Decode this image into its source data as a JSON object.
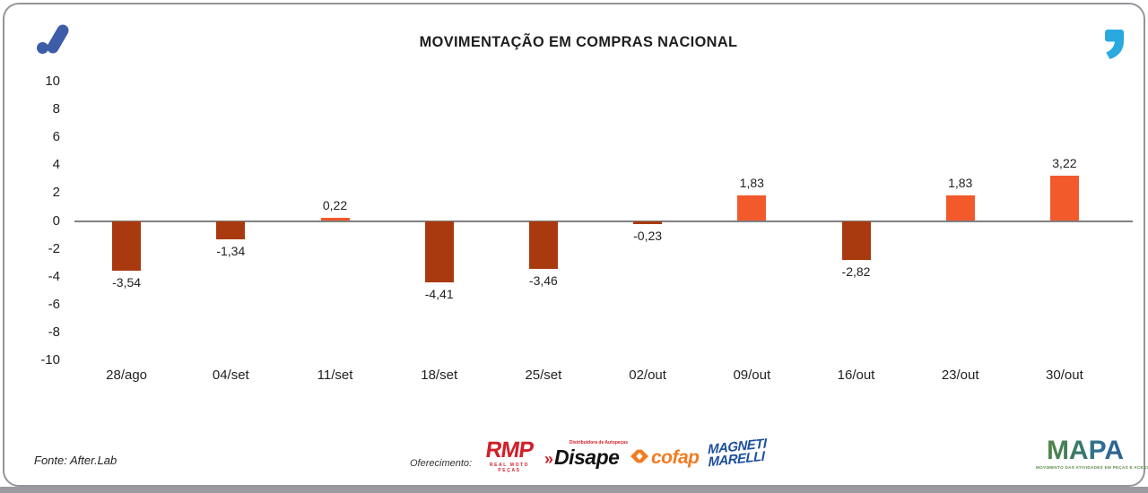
{
  "chart_data": {
    "type": "bar",
    "title": "MOVIMENTAÇÃO EM COMPRAS NACIONAL",
    "categories": [
      "28/ago",
      "04/set",
      "11/set",
      "18/set",
      "25/set",
      "02/out",
      "09/out",
      "16/out",
      "23/out",
      "30/out"
    ],
    "values": [
      -3.54,
      -1.34,
      0.22,
      -4.41,
      -3.46,
      -0.23,
      1.83,
      -2.82,
      1.83,
      3.22
    ],
    "value_labels": [
      "-3,54",
      "-1,34",
      "0,22",
      "-4,41",
      "-3,46",
      "-0,23",
      "1,83",
      "-2,82",
      "1,83",
      "3,22"
    ],
    "ylim": [
      -10,
      10
    ],
    "ytick_step": 2,
    "grid": false,
    "legend": "none",
    "colors": {
      "positive": "#f2592b",
      "negative": "#a93a10",
      "axis": "#808080"
    }
  },
  "header": {
    "brand_color": "#3d5da9",
    "quote_color": "#29a9e0"
  },
  "footer": {
    "fonte": "Fonte: After.Lab",
    "oferecimento_label": "Oferecimento:",
    "sponsors": [
      {
        "name": "RMP",
        "subtext": "REAL MOTO PEÇAS"
      },
      {
        "name": "Disape",
        "prefix": "»",
        "subtext": "Distribuidora de Autopeças"
      },
      {
        "name": "cofap"
      },
      {
        "name": "MAGNETI",
        "line2": "MARELLI"
      }
    ],
    "mapa": {
      "name": "MAPA",
      "tagline": "MOVIMENTO DAS ATIVIDADES EM PEÇAS E ACESSÓRIOS"
    }
  }
}
